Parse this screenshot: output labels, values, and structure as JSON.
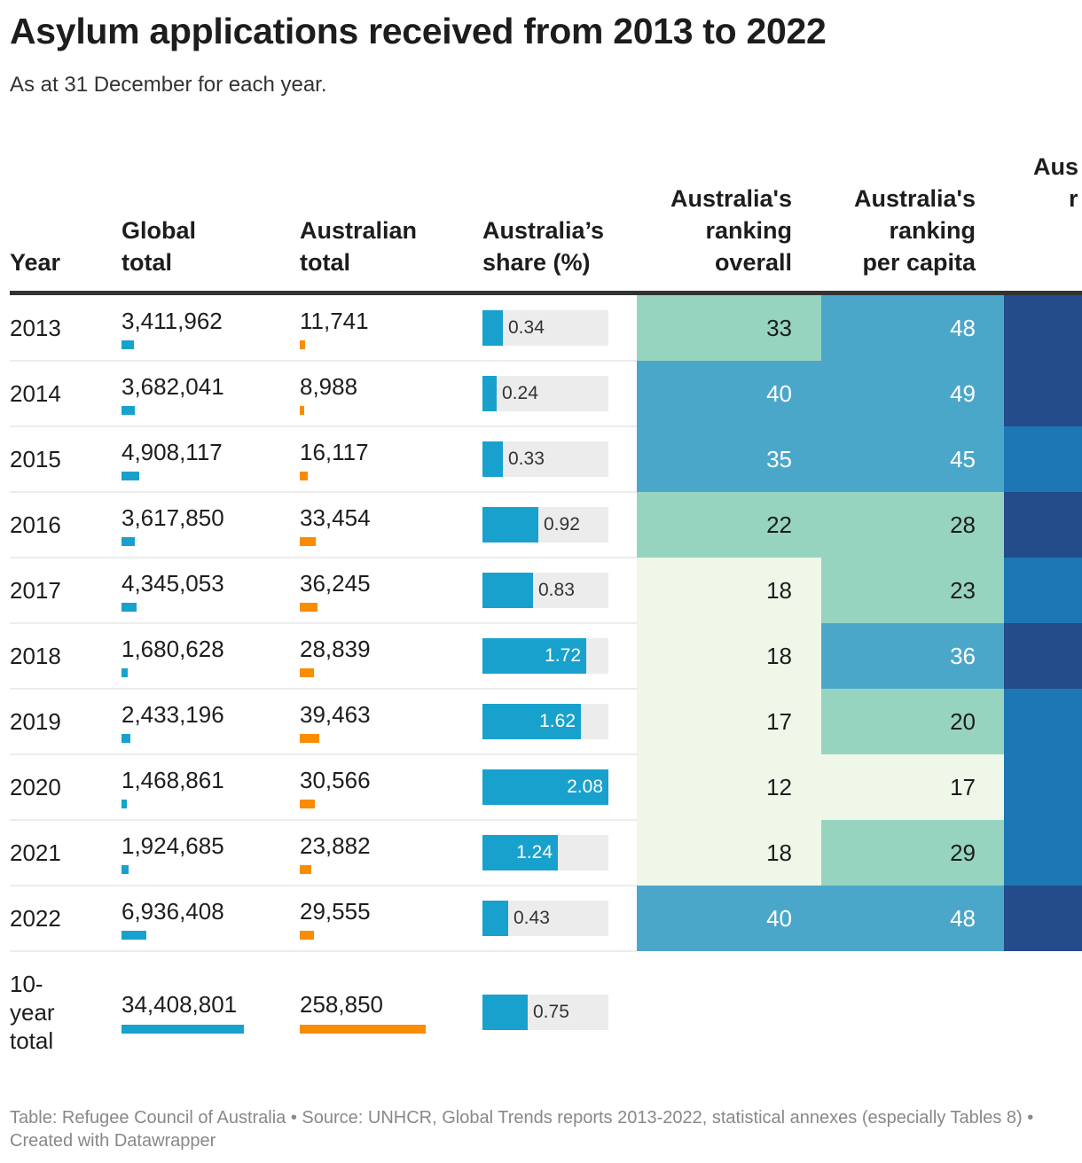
{
  "title": "Asylum applications received from 2013 to 2022",
  "subtitle": "As at 31 December for each year.",
  "colors": {
    "global_bar": "#18a1cd",
    "australian_bar": "#fa8c00",
    "share_bar": "#18a1cd",
    "share_bg": "#ececec",
    "heat_light": "#eff7e8",
    "heat_mint": "#97d4c0",
    "heat_blue": "#4ba7ca",
    "heat_mid_blue": "#1c77b4",
    "heat_dark_blue": "#244b8a"
  },
  "chart_data": {
    "type": "table",
    "title": "Asylum applications received from 2013 to 2022",
    "subtitle": "As at 31 December for each year.",
    "columns": [
      {
        "key": "year",
        "label_lines": [
          "Year"
        ]
      },
      {
        "key": "global_total",
        "label_lines": [
          "Global",
          "total"
        ],
        "display": "number-with-bar"
      },
      {
        "key": "australian_total",
        "label_lines": [
          "Australian",
          "total"
        ],
        "display": "number-with-bar"
      },
      {
        "key": "australia_share",
        "label_lines": [
          "Australia’s",
          "share (%)"
        ],
        "display": "bar"
      },
      {
        "key": "ranking_overall",
        "label_lines": [
          "Australia's",
          "ranking",
          "overall"
        ],
        "display": "heatmap"
      },
      {
        "key": "ranking_per_capita",
        "label_lines": [
          "Australia's",
          "ranking",
          "per capita"
        ],
        "display": "heatmap"
      },
      {
        "key": "cut_off_column",
        "label_lines": [
          "Aus",
          "r"
        ],
        "display": "heatmap",
        "partially_visible": true
      }
    ],
    "rows": [
      {
        "year": "2013",
        "global_total": 3411962,
        "global_total_text": "3,411,962",
        "australian_total": 11741,
        "australian_total_text": "11,741",
        "australia_share": 0.34,
        "australia_share_text": "0.34",
        "ranking_overall": 33,
        "ranking_per_capita": 48,
        "cut_off_color": "dark"
      },
      {
        "year": "2014",
        "global_total": 3682041,
        "global_total_text": "3,682,041",
        "australian_total": 8988,
        "australian_total_text": "8,988",
        "australia_share": 0.24,
        "australia_share_text": "0.24",
        "ranking_overall": 40,
        "ranking_per_capita": 49,
        "cut_off_color": "dark"
      },
      {
        "year": "2015",
        "global_total": 4908117,
        "global_total_text": "4,908,117",
        "australian_total": 16117,
        "australian_total_text": "16,117",
        "australia_share": 0.33,
        "australia_share_text": "0.33",
        "ranking_overall": 35,
        "ranking_per_capita": 45,
        "cut_off_color": "mid"
      },
      {
        "year": "2016",
        "global_total": 3617850,
        "global_total_text": "3,617,850",
        "australian_total": 33454,
        "australian_total_text": "33,454",
        "australia_share": 0.92,
        "australia_share_text": "0.92",
        "ranking_overall": 22,
        "ranking_per_capita": 28,
        "cut_off_color": "dark"
      },
      {
        "year": "2017",
        "global_total": 4345053,
        "global_total_text": "4,345,053",
        "australian_total": 36245,
        "australian_total_text": "36,245",
        "australia_share": 0.83,
        "australia_share_text": "0.83",
        "ranking_overall": 18,
        "ranking_per_capita": 23,
        "cut_off_color": "mid"
      },
      {
        "year": "2018",
        "global_total": 1680628,
        "global_total_text": "1,680,628",
        "australian_total": 28839,
        "australian_total_text": "28,839",
        "australia_share": 1.72,
        "australia_share_text": "1.72",
        "ranking_overall": 18,
        "ranking_per_capita": 36,
        "cut_off_color": "dark"
      },
      {
        "year": "2019",
        "global_total": 2433196,
        "global_total_text": "2,433,196",
        "australian_total": 39463,
        "australian_total_text": "39,463",
        "australia_share": 1.62,
        "australia_share_text": "1.62",
        "ranking_overall": 17,
        "ranking_per_capita": 20,
        "cut_off_color": "mid"
      },
      {
        "year": "2020",
        "global_total": 1468861,
        "global_total_text": "1,468,861",
        "australian_total": 30566,
        "australian_total_text": "30,566",
        "australia_share": 2.08,
        "australia_share_text": "2.08",
        "ranking_overall": 12,
        "ranking_per_capita": 17,
        "cut_off_color": "mid"
      },
      {
        "year": "2021",
        "global_total": 1924685,
        "global_total_text": "1,924,685",
        "australian_total": 23882,
        "australian_total_text": "23,882",
        "australia_share": 1.24,
        "australia_share_text": "1.24",
        "ranking_overall": 18,
        "ranking_per_capita": 29,
        "cut_off_color": "mid"
      },
      {
        "year": "2022",
        "global_total": 6936408,
        "global_total_text": "6,936,408",
        "australian_total": 29555,
        "australian_total_text": "29,555",
        "australia_share": 0.43,
        "australia_share_text": "0.43",
        "ranking_overall": 40,
        "ranking_per_capita": 48,
        "cut_off_color": "dark"
      }
    ],
    "total_row": {
      "year_lines": [
        "10-",
        "year",
        "total"
      ],
      "global_total": 34408801,
      "global_total_text": "34,408,801",
      "australian_total": 258850,
      "australian_total_text": "258,850",
      "australia_share": 0.75,
      "australia_share_text": "0.75"
    },
    "share_max": 2.08,
    "heatmap_bins": [
      {
        "range": [
          0,
          19
        ],
        "color": "light"
      },
      {
        "range": [
          20,
          33
        ],
        "color": "mint"
      },
      {
        "range": [
          34,
          60
        ],
        "color": "blue"
      }
    ]
  },
  "footer": {
    "text": "Table: Refugee Council of Australia • Source: UNHCR, Global Trends reports 2013-2022, statistical annexes (especially Tables 8) • Created with Datawrapper"
  }
}
